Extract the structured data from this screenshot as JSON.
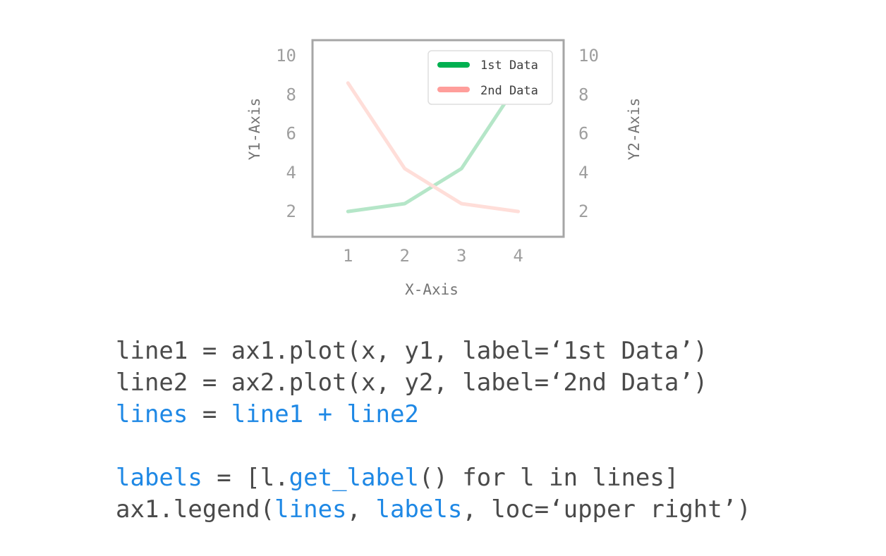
{
  "chart_data": {
    "type": "line",
    "x": [
      1,
      2,
      3,
      4
    ],
    "series": [
      {
        "name": "1st Data",
        "axis": "left",
        "values": [
          2,
          2.4,
          4.2,
          8.6
        ],
        "color": "#00b050",
        "line_color": "#b5e6c8"
      },
      {
        "name": "2nd Data",
        "axis": "right",
        "values": [
          8.6,
          4.2,
          2.4,
          2
        ],
        "color": "#ff9e9b",
        "line_color": "#ffded9"
      }
    ],
    "xlabel": "X-Axis",
    "ylabel": "Y1-Axis",
    "y2label": "Y2-Axis",
    "xlim": [
      0.375,
      4.8
    ],
    "ylim": [
      0.7,
      10.8
    ],
    "y2lim": [
      0.7,
      10.8
    ],
    "xticks": [
      "1",
      "2",
      "3",
      "4"
    ],
    "yticks": [
      "2",
      "4",
      "6",
      "8",
      "10"
    ],
    "y2ticks": [
      "2",
      "4",
      "6",
      "8",
      "10"
    ],
    "legend": {
      "placement": "upper right",
      "entries": [
        "1st Data",
        "2nd Data"
      ]
    },
    "grid": false
  },
  "code": {
    "lines": [
      [
        {
          "t": "line1 = ax1.plot(x, y1, label=‘1st Data’)",
          "hl": false
        }
      ],
      [
        {
          "t": "line2 = ax2.plot(x, y2, label=‘2nd Data’)",
          "hl": false
        }
      ],
      [
        {
          "t": "lines",
          "hl": true
        },
        {
          "t": " = ",
          "hl": false
        },
        {
          "t": "line1 + line2",
          "hl": true
        }
      ],
      [],
      [
        {
          "t": "labels",
          "hl": true
        },
        {
          "t": " = [l.",
          "hl": false
        },
        {
          "t": "get_label",
          "hl": true
        },
        {
          "t": "() for l in lines]",
          "hl": false
        }
      ],
      [
        {
          "t": "ax1.legend(",
          "hl": false
        },
        {
          "t": "lines",
          "hl": true
        },
        {
          "t": ", ",
          "hl": false
        },
        {
          "t": "labels",
          "hl": true
        },
        {
          "t": ", loc=‘upper right’)",
          "hl": false
        }
      ]
    ]
  }
}
